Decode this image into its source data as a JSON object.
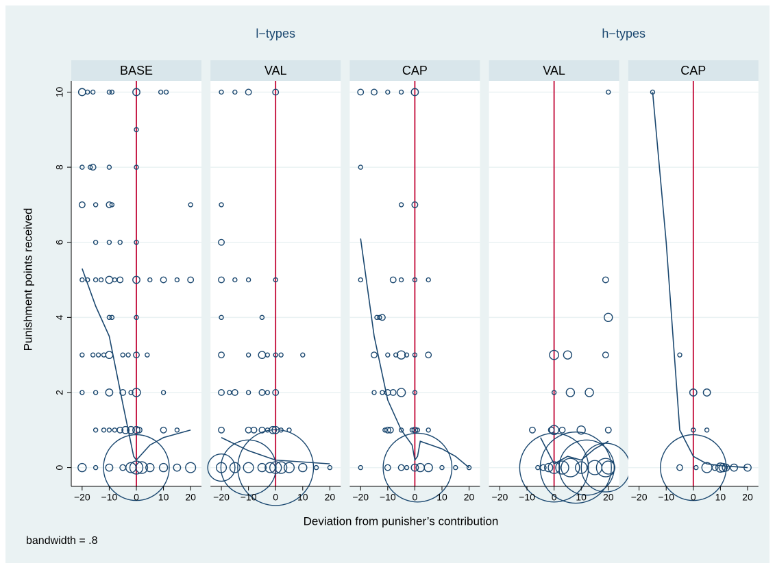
{
  "chart_data": {
    "type": "scatter",
    "groups": [
      "l−types",
      "h−types"
    ],
    "ylabel": "Punishment points received",
    "xlabel": "Deviation from punisher’s contribution",
    "note": "bandwidth = .8",
    "xlim": [
      -24,
      24
    ],
    "ylim": [
      -0.5,
      10.3
    ],
    "xticks": [
      {
        "value": -20,
        "label": "−20"
      },
      {
        "value": -10,
        "label": "−10"
      },
      0,
      10,
      20
    ],
    "yticks": [
      0,
      2,
      4,
      6,
      8,
      10
    ],
    "xline": 0,
    "grid": true,
    "color": "#1a476f",
    "xline_color": "#c10534",
    "panels": [
      {
        "title": "BASE",
        "group": 0,
        "x": [
          -20,
          -18,
          -16,
          -10,
          -9,
          0,
          9,
          11,
          0,
          -20,
          -17,
          -16,
          -10,
          0,
          -20,
          -15,
          -10,
          -9,
          20,
          -15,
          -10,
          -6,
          0,
          -20,
          -18,
          -15,
          -13,
          -10,
          -8,
          -6,
          0,
          5,
          10,
          15,
          20,
          -10,
          -9,
          0,
          -20,
          -16,
          -14,
          -12,
          -10,
          -5,
          -3,
          0,
          4,
          -20,
          -15,
          -10,
          -5,
          -2,
          0,
          10,
          -15,
          -12,
          -10,
          -8,
          -6,
          -4,
          -2,
          0,
          1,
          10,
          15,
          -20,
          -15,
          -10,
          -5,
          -2,
          0,
          2,
          5,
          10,
          15,
          20,
          0
        ],
        "y": [
          10,
          10,
          10,
          10,
          10,
          10,
          10,
          10,
          9,
          8,
          8,
          8,
          8,
          8,
          7,
          7,
          7,
          7,
          7,
          6,
          6,
          6,
          6,
          5,
          5,
          5,
          5,
          5,
          5,
          5,
          5,
          5,
          5,
          5,
          5,
          4,
          4,
          4,
          3,
          3,
          3,
          3,
          3,
          3,
          3,
          3,
          3,
          2,
          2,
          2,
          2,
          2,
          2,
          2,
          1,
          1,
          1,
          1,
          1,
          1,
          1,
          1,
          1,
          1,
          1,
          0,
          0,
          0,
          0,
          0,
          0,
          0,
          0,
          0,
          0,
          0,
          0
        ],
        "sizes": [
          3,
          1,
          1,
          1,
          1,
          3,
          1,
          1,
          1,
          1,
          1,
          2,
          1,
          1,
          2,
          1,
          2,
          1,
          1,
          1,
          1,
          1,
          1,
          1,
          1,
          1,
          1,
          3,
          1,
          2,
          3,
          1,
          2,
          1,
          2,
          1,
          1,
          1,
          1,
          1,
          1,
          1,
          3,
          1,
          1,
          2,
          1,
          1,
          1,
          3,
          2,
          1,
          4,
          1,
          1,
          1,
          1,
          1,
          2,
          3,
          3,
          3,
          2,
          2,
          1,
          4,
          1,
          3,
          2,
          6,
          10,
          8,
          4,
          4,
          3,
          6,
          256
        ],
        "fit_x": [
          -20,
          -15,
          -10,
          -5,
          -1,
          0,
          5,
          10,
          20
        ],
        "fit_y": [
          5.3,
          4.3,
          3.5,
          1.7,
          0.3,
          0.2,
          0.6,
          0.8,
          1.0
        ]
      },
      {
        "title": "VAL",
        "group": 0,
        "x": [
          -20,
          -15,
          -10,
          0,
          -20,
          -20,
          -20,
          -15,
          -10,
          0,
          -20,
          -5,
          -20,
          -10,
          -5,
          -3,
          0,
          2,
          10,
          -20,
          -17,
          -15,
          -10,
          -5,
          -3,
          0,
          -20,
          -10,
          -8,
          -5,
          -3,
          -1,
          0,
          2,
          5,
          -20,
          -15,
          -10,
          -5,
          -2,
          0,
          2,
          5,
          10,
          15,
          20,
          -20,
          -10,
          0
        ],
        "y": [
          10,
          10,
          10,
          10,
          7,
          6,
          5,
          5,
          5,
          5,
          4,
          4,
          3,
          3,
          3,
          3,
          3,
          3,
          3,
          2,
          2,
          2,
          2,
          2,
          2,
          2,
          1,
          1,
          1,
          1,
          1,
          1,
          1,
          1,
          1,
          0,
          0,
          0,
          0,
          0,
          0,
          0,
          0,
          0,
          0,
          0,
          0,
          0,
          0
        ],
        "sizes": [
          1,
          1,
          2,
          2,
          1,
          2,
          2,
          1,
          1,
          1,
          1,
          1,
          2,
          1,
          3,
          1,
          1,
          1,
          1,
          2,
          1,
          2,
          1,
          2,
          1,
          2,
          2,
          2,
          2,
          2,
          1,
          3,
          3,
          1,
          1,
          6,
          6,
          6,
          4,
          6,
          8,
          8,
          6,
          4,
          1,
          1,
          44,
          180,
          340
        ],
        "fit_x": [
          -20,
          -10,
          0,
          10,
          20
        ],
        "fit_y": [
          0.8,
          0.45,
          0.2,
          0.15,
          0.1
        ]
      },
      {
        "title": "CAP",
        "group": 0,
        "x": [
          -20,
          -15,
          -10,
          -5,
          0,
          -20,
          -5,
          0,
          -20,
          -8,
          -5,
          0,
          5,
          -14,
          -13,
          -12,
          -15,
          -10,
          -7,
          -5,
          -3,
          0,
          5,
          -15,
          -12,
          -10,
          -8,
          -5,
          0,
          -11,
          -10,
          -9,
          -5,
          -1,
          0,
          1,
          5,
          -20,
          -10,
          -5,
          -3,
          0,
          2,
          5,
          10,
          15,
          20,
          1
        ],
        "y": [
          10,
          10,
          10,
          10,
          10,
          8,
          7,
          7,
          5,
          5,
          5,
          5,
          5,
          4,
          4,
          4,
          3,
          3,
          3,
          3,
          3,
          3,
          3,
          2,
          2,
          2,
          2,
          2,
          2,
          1,
          1,
          1,
          1,
          1,
          1,
          1,
          1,
          0,
          0,
          0,
          0,
          0,
          0,
          0,
          0,
          0,
          0,
          0
        ],
        "sizes": [
          2,
          2,
          1,
          1,
          3,
          1,
          1,
          2,
          1,
          2,
          1,
          1,
          1,
          1,
          1,
          2,
          2,
          1,
          1,
          4,
          1,
          1,
          2,
          1,
          1,
          2,
          2,
          4,
          1,
          1,
          2,
          2,
          1,
          1,
          2,
          1,
          1,
          1,
          2,
          2,
          1,
          3,
          4,
          4,
          1,
          1,
          1,
          280
        ],
        "fit_x": [
          -20,
          -15,
          -10,
          -5,
          -1,
          0,
          1,
          2,
          10,
          15,
          20
        ],
        "fit_y": [
          6.1,
          3.5,
          1.8,
          1.0,
          0.6,
          0.2,
          0.3,
          0.7,
          0.5,
          0.3,
          0
        ]
      },
      {
        "title": "VAL",
        "group": 1,
        "x": [
          20,
          19,
          20,
          0,
          5,
          19,
          0,
          6,
          13,
          -8,
          -1,
          0,
          3,
          10,
          20,
          -6,
          -4,
          -2,
          0,
          3,
          6,
          10,
          15,
          19,
          20,
          0,
          8,
          12,
          19
        ],
        "y": [
          10,
          5,
          4,
          3,
          3,
          3,
          2,
          2,
          2,
          1,
          1,
          1,
          1,
          1,
          1,
          0,
          0,
          0,
          0,
          0,
          0,
          0,
          0,
          0,
          0,
          0,
          0,
          0,
          0
        ],
        "sizes": [
          1,
          2,
          4,
          5,
          4,
          2,
          1,
          4,
          4,
          2,
          2,
          5,
          2,
          4,
          2,
          1,
          2,
          4,
          8,
          10,
          20,
          8,
          12,
          20,
          10,
          280,
          300,
          180,
          140
        ],
        "fit_x": [
          -5,
          0,
          5,
          10,
          15,
          20
        ],
        "fit_y": [
          0.8,
          0.1,
          0.3,
          0.2,
          0.5,
          0.7
        ]
      },
      {
        "title": "CAP",
        "group": 1,
        "x": [
          -15,
          -5,
          0,
          5,
          0,
          5,
          -5,
          1,
          5,
          8,
          10,
          11,
          12,
          15,
          20,
          0
        ],
        "y": [
          10,
          3,
          2,
          2,
          1,
          1,
          0,
          0,
          0,
          0,
          0,
          0,
          0,
          0,
          0,
          0
        ],
        "sizes": [
          1,
          1,
          3,
          3,
          1,
          1,
          2,
          1,
          6,
          2,
          5,
          4,
          3,
          3,
          3,
          256
        ],
        "fit_x": [
          -15,
          -10,
          -5,
          0,
          5,
          10,
          20
        ],
        "fit_y": [
          10,
          6,
          1,
          0.3,
          0.1,
          0.05,
          0
        ]
      }
    ]
  }
}
